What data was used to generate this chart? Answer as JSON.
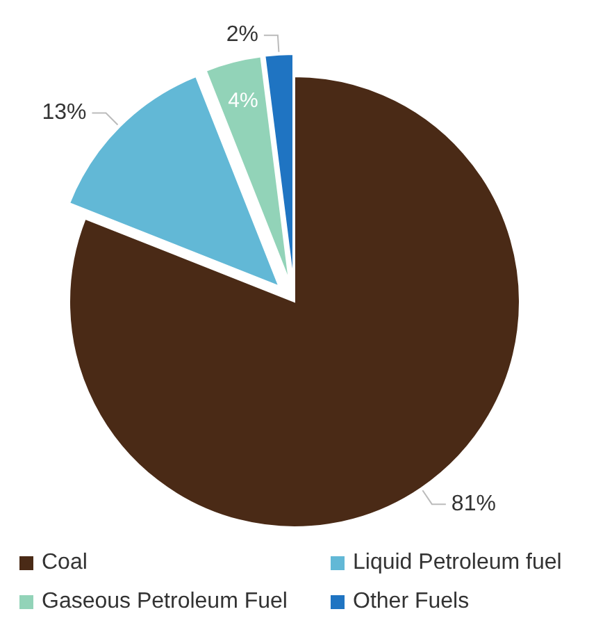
{
  "chart_data": {
    "type": "pie",
    "categories": [
      "Coal",
      "Liquid Petroleum fuel",
      "Gaseous Petroleum Fuel",
      "Other Fuels"
    ],
    "values": [
      81,
      13,
      4,
      2
    ],
    "colors": [
      "#4a2a16",
      "#62b8d6",
      "#92d3b8",
      "#1f74c2"
    ],
    "value_labels": [
      "81%",
      "13%",
      "4%",
      "2%"
    ],
    "legend": "bottom"
  }
}
